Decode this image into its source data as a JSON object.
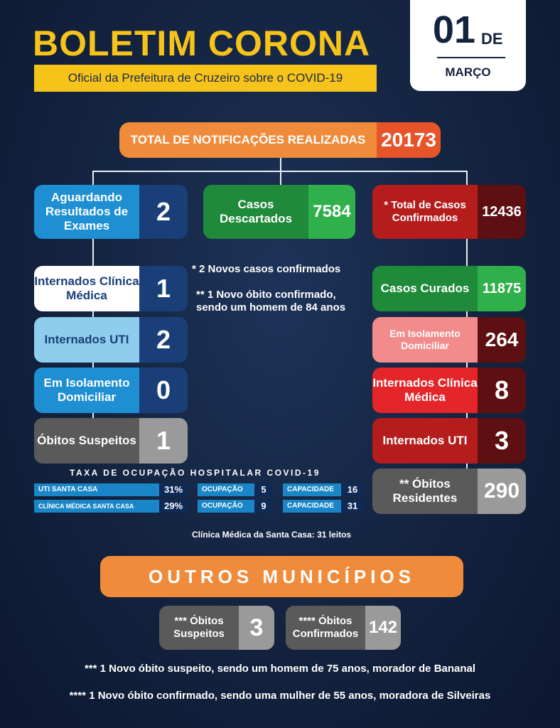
{
  "header": {
    "title": "BOLETIM CORONA",
    "subtitle": "Oficial da Prefeitura de Cruzeiro sobre o COVID-19",
    "date_day": "01",
    "date_de": "DE",
    "date_month": "MARÇO"
  },
  "total": {
    "label": "TOTAL DE NOTIFICAÇÕES REALIZADAS",
    "value": "20173"
  },
  "left": {
    "aguardando": {
      "label": "Aguardando Resultados de Exames",
      "value": "2"
    },
    "internados_clinica": {
      "label": "Internados Clínica Médica",
      "value": "1"
    },
    "internados_uti": {
      "label": "Internados UTI",
      "value": "2"
    },
    "isolamento": {
      "label": "Em Isolamento Domiciliar",
      "value": "0"
    },
    "obitos_suspeitos": {
      "label": "Óbitos Suspeitos",
      "value": "1"
    }
  },
  "center": {
    "descartados": {
      "label": "Casos Descartados",
      "value": "7584"
    },
    "note1": "* 2 Novos casos confirmados",
    "note2_line1": "** 1 Novo óbito confirmado,",
    "note2_line2": "sendo um homem de 84 anos"
  },
  "right": {
    "confirmados": {
      "label": "* Total de Casos Confirmados",
      "value": "12436"
    },
    "curados": {
      "label": "Casos Curados",
      "value": "11875"
    },
    "isolamento": {
      "label": "Em Isolamento Domiciliar",
      "value": "264"
    },
    "internados_clinica": {
      "label": "Internados Clínica Médica",
      "value": "8"
    },
    "internados_uti": {
      "label": "Internados UTI",
      "value": "3"
    },
    "obitos_residentes": {
      "label": "** Óbitos Residentes",
      "value": "290"
    }
  },
  "taxa": {
    "title": "TAXA DE OCUPAÇÃO HOSPITALAR COVID-19",
    "rows": [
      {
        "name": "UTI SANTA CASA",
        "percent": "31%",
        "ocupacao_label": "OCUPAÇÃO",
        "ocupacao": "5",
        "capacidade_label": "CAPACIDADE",
        "capacidade": "16"
      },
      {
        "name": "CLÍNICA MÉDICA SANTA CASA",
        "percent": "29%",
        "ocupacao_label": "OCUPAÇÃO",
        "ocupacao": "9",
        "capacidade_label": "CAPACIDADE",
        "capacidade": "31"
      }
    ],
    "note": "Clínica Médica da Santa Casa: 31 leitos"
  },
  "outros": {
    "title": "OUTROS MUNICÍPIOS",
    "suspeitos": {
      "label": "*** Óbitos Suspeitos",
      "value": "3"
    },
    "confirmados": {
      "label": "**** Óbitos Confirmados",
      "value": "142"
    },
    "foot1": "*** 1 Novo óbito suspeito, sendo um homem de 75 anos, morador de Bananal",
    "foot2": "**** 1 Novo óbito confirmado, sendo uma mulher de 55 anos, moradora de Silveiras"
  },
  "colors": {
    "background": "#13233f",
    "yellow": "#f6c31a",
    "orange": "#f08b3b",
    "green": "#1f8a3a",
    "red": "#b51d1d",
    "blue": "#1a86c8"
  }
}
